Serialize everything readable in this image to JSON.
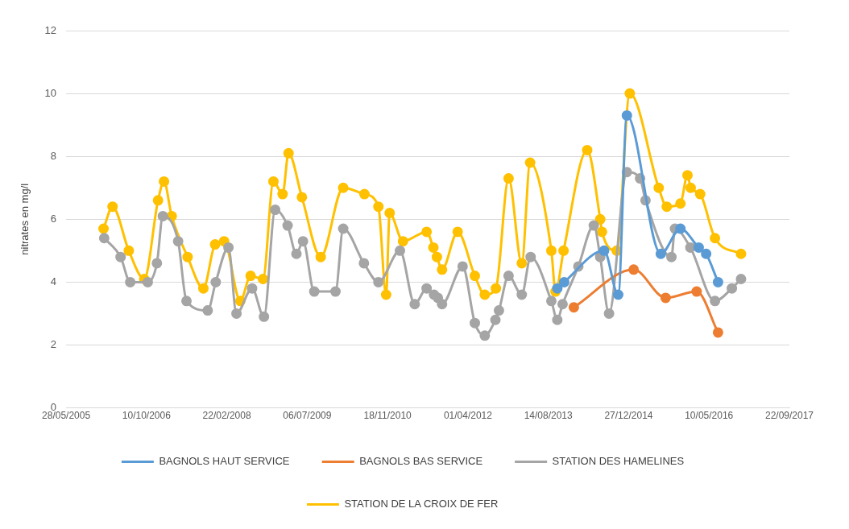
{
  "chart_data": {
    "type": "line",
    "ylabel": "nitrates en mg/l",
    "marker": "circle",
    "grid": "y",
    "legend": "bottom",
    "xlim": [
      "2005-05-28",
      "2017-09-22"
    ],
    "xticks": [
      {
        "value": "2005-05-28",
        "label": "28/05/2005"
      },
      {
        "value": "2006-10-10",
        "label": "10/10/2006"
      },
      {
        "value": "2008-02-22",
        "label": "22/02/2008"
      },
      {
        "value": "2009-07-06",
        "label": "06/07/2009"
      },
      {
        "value": "2010-11-18",
        "label": "18/11/2010"
      },
      {
        "value": "2012-04-01",
        "label": "01/04/2012"
      },
      {
        "value": "2013-08-14",
        "label": "14/08/2013"
      },
      {
        "value": "2014-12-27",
        "label": "27/12/2014"
      },
      {
        "value": "2016-05-10",
        "label": "10/05/2016"
      },
      {
        "value": "2017-09-22",
        "label": "22/09/2017"
      }
    ],
    "ylim": [
      0,
      12
    ],
    "yticks": [
      0,
      2,
      4,
      6,
      8,
      10,
      12
    ],
    "series": [
      {
        "name": "BAGNOLS HAUT SERVICE",
        "color": "#5b9bd5",
        "x": [
          "2013-10-09",
          "2013-11-21",
          "2014-07-27",
          "2014-10-23",
          "2014-12-16",
          "2015-07-15",
          "2015-11-14",
          "2016-03-07",
          "2016-04-22",
          "2016-07-05"
        ],
        "values": [
          3.8,
          4.0,
          5.0,
          3.6,
          9.3,
          4.9,
          5.7,
          5.1,
          4.9,
          4.0
        ]
      },
      {
        "name": "BAGNOLS BAS SERVICE",
        "color": "#ed7d31",
        "x": [
          "2014-01-20",
          "2015-01-27",
          "2015-08-14",
          "2016-02-23",
          "2016-07-05"
        ],
        "values": [
          3.2,
          4.4,
          3.5,
          3.7,
          2.4
        ]
      },
      {
        "name": "STATION DES HAMELINES",
        "color": "#a5a5a5",
        "x": [
          "2006-01-20",
          "2006-05-02",
          "2006-07-01",
          "2006-10-18",
          "2006-12-14",
          "2007-01-20",
          "2007-04-25",
          "2007-06-16",
          "2007-10-26",
          "2007-12-15",
          "2008-03-03",
          "2008-04-22",
          "2008-07-28",
          "2008-10-10",
          "2008-12-19",
          "2009-03-06",
          "2009-04-30",
          "2009-06-10",
          "2009-08-19",
          "2009-12-29",
          "2010-02-15",
          "2010-06-24",
          "2010-09-22",
          "2011-02-03",
          "2011-05-06",
          "2011-07-19",
          "2011-09-03",
          "2011-09-27",
          "2011-10-23",
          "2012-02-28",
          "2012-05-14",
          "2012-07-15",
          "2012-09-19",
          "2012-10-11",
          "2012-12-10",
          "2013-03-02",
          "2013-04-26",
          "2013-09-02",
          "2013-10-09",
          "2013-11-11",
          "2014-02-17",
          "2014-05-24",
          "2014-07-03",
          "2014-08-27",
          "2014-12-16",
          "2015-03-08",
          "2015-04-11",
          "2015-09-19",
          "2015-10-11",
          "2016-01-15",
          "2016-06-16",
          "2016-09-29",
          "2016-11-25"
        ],
        "values": [
          5.4,
          4.8,
          4.0,
          4.0,
          4.6,
          6.1,
          5.3,
          3.4,
          3.1,
          4.0,
          5.1,
          3.0,
          3.8,
          2.9,
          6.3,
          5.8,
          4.9,
          5.3,
          3.7,
          3.7,
          5.7,
          4.6,
          4.0,
          5.0,
          3.3,
          3.8,
          3.6,
          3.5,
          3.3,
          4.5,
          2.7,
          2.3,
          2.8,
          3.1,
          4.2,
          3.6,
          4.8,
          3.4,
          2.8,
          3.3,
          4.5,
          5.8,
          4.8,
          3.0,
          7.5,
          7.3,
          6.6,
          4.8,
          5.7,
          5.1,
          3.4,
          3.8,
          4.1
        ]
      },
      {
        "name": "STATION DE LA CROIX DE FER",
        "color": "#ffc000",
        "x": [
          "2006-01-16",
          "2006-03-13",
          "2006-06-22",
          "2006-09-26",
          "2006-12-21",
          "2007-01-27",
          "2007-03-16",
          "2007-06-23",
          "2007-09-29",
          "2007-12-11",
          "2008-02-05",
          "2008-05-16",
          "2008-07-19",
          "2008-10-04",
          "2008-12-08",
          "2009-02-03",
          "2009-03-12",
          "2009-06-03",
          "2009-09-28",
          "2010-02-15",
          "2010-06-27",
          "2010-09-22",
          "2010-11-09",
          "2010-12-01",
          "2011-02-22",
          "2011-07-19",
          "2011-08-30",
          "2011-09-21",
          "2011-10-23",
          "2012-01-28",
          "2012-05-14",
          "2012-07-15",
          "2012-09-22",
          "2012-12-10",
          "2013-03-02",
          "2013-04-23",
          "2013-09-02",
          "2013-09-28",
          "2013-11-17",
          "2014-04-13",
          "2014-07-03",
          "2014-07-14",
          "2014-10-14",
          "2015-01-03",
          "2015-07-02",
          "2015-08-21",
          "2015-11-14",
          "2015-12-28",
          "2016-01-17",
          "2016-03-16",
          "2016-06-16",
          "2016-11-25"
        ],
        "values": [
          5.7,
          6.4,
          5.0,
          4.1,
          6.6,
          7.2,
          6.1,
          4.8,
          3.8,
          5.2,
          5.3,
          3.4,
          4.2,
          4.1,
          7.2,
          6.8,
          8.1,
          6.7,
          4.8,
          7.0,
          6.8,
          6.4,
          3.6,
          6.2,
          5.3,
          5.6,
          5.1,
          4.8,
          4.4,
          5.6,
          4.2,
          3.6,
          3.8,
          7.3,
          4.6,
          7.8,
          5.0,
          3.7,
          5.0,
          8.2,
          6.0,
          5.6,
          5.0,
          10.0,
          7.0,
          6.4,
          6.5,
          7.4,
          7.0,
          6.8,
          5.4,
          4.9
        ]
      }
    ]
  }
}
